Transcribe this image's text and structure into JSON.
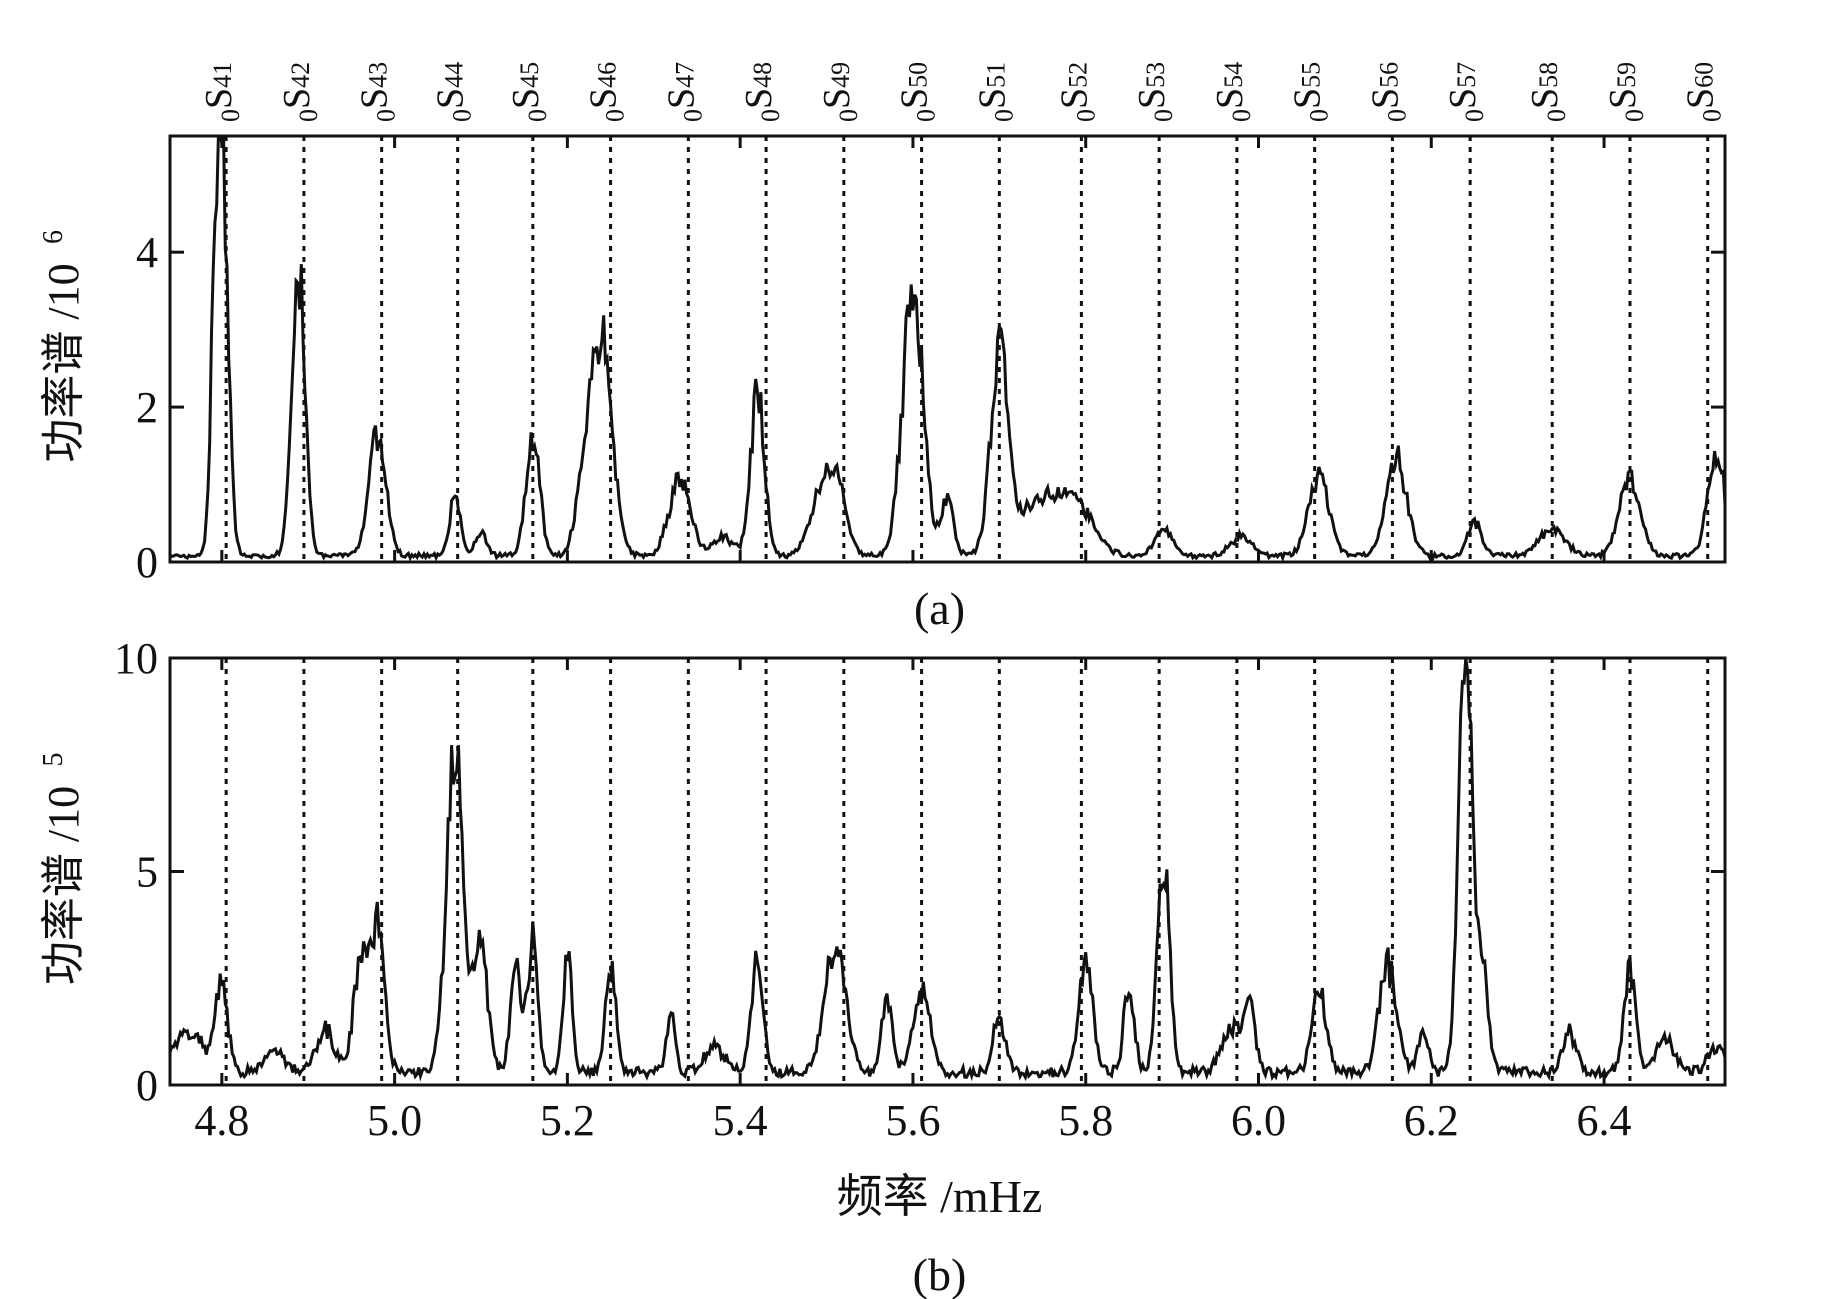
{
  "chart_data": [
    {
      "id": "a",
      "type": "line",
      "panel_label": "(a)",
      "ylabel": "功率谱 /10",
      "ylabel_exponent": "6",
      "xlim": [
        4.74,
        6.54
      ],
      "ylim": [
        0,
        5.5
      ],
      "yticks": [
        "0",
        "2",
        "4"
      ],
      "ytick_values": [
        0,
        2,
        4
      ],
      "grid": false,
      "mode_lines_style": "dotted",
      "peaks": [
        {
          "f": 4.8,
          "a": 5.0,
          "w": 0.007
        },
        {
          "f": 4.792,
          "a": 2.0,
          "w": 0.005
        },
        {
          "f": 4.89,
          "a": 3.5,
          "w": 0.007
        },
        {
          "f": 4.88,
          "a": 0.6,
          "w": 0.006
        },
        {
          "f": 4.98,
          "a": 1.5,
          "w": 0.01
        },
        {
          "f": 5.07,
          "a": 0.8,
          "w": 0.006
        },
        {
          "f": 5.1,
          "a": 0.28,
          "w": 0.007
        },
        {
          "f": 5.16,
          "a": 1.5,
          "w": 0.008
        },
        {
          "f": 5.24,
          "a": 2.7,
          "w": 0.012
        },
        {
          "f": 5.22,
          "a": 0.9,
          "w": 0.01
        },
        {
          "f": 5.33,
          "a": 1.0,
          "w": 0.012
        },
        {
          "f": 5.38,
          "a": 0.25,
          "w": 0.012
        },
        {
          "f": 5.42,
          "a": 2.1,
          "w": 0.008
        },
        {
          "f": 5.51,
          "a": 0.95,
          "w": 0.012
        },
        {
          "f": 5.49,
          "a": 0.6,
          "w": 0.012
        },
        {
          "f": 5.6,
          "a": 3.5,
          "w": 0.012
        },
        {
          "f": 5.64,
          "a": 0.7,
          "w": 0.007
        },
        {
          "f": 5.7,
          "a": 2.5,
          "w": 0.01
        },
        {
          "f": 5.75,
          "a": 0.7,
          "w": 0.03
        },
        {
          "f": 5.79,
          "a": 0.45,
          "w": 0.02
        },
        {
          "f": 5.89,
          "a": 0.35,
          "w": 0.01
        },
        {
          "f": 5.98,
          "a": 0.25,
          "w": 0.012
        },
        {
          "f": 6.07,
          "a": 1.0,
          "w": 0.012
        },
        {
          "f": 6.16,
          "a": 1.25,
          "w": 0.012
        },
        {
          "f": 6.25,
          "a": 0.45,
          "w": 0.008
        },
        {
          "f": 6.34,
          "a": 0.35,
          "w": 0.015
        },
        {
          "f": 6.43,
          "a": 1.0,
          "w": 0.012
        },
        {
          "f": 6.53,
          "a": 1.3,
          "w": 0.01
        }
      ],
      "baseline": 0.08
    },
    {
      "id": "b",
      "type": "line",
      "panel_label": "(b)",
      "ylabel": "功率谱 /10",
      "ylabel_exponent": "5",
      "xlabel": "频率 /mHz",
      "xlim": [
        4.74,
        6.54
      ],
      "ylim": [
        0,
        10
      ],
      "xticks": [
        "4.8",
        "5.0",
        "5.2",
        "5.4",
        "5.6",
        "5.8",
        "6.0",
        "6.2",
        "6.4"
      ],
      "xtick_values": [
        4.8,
        5.0,
        5.2,
        5.4,
        5.6,
        5.8,
        6.0,
        6.2,
        6.4
      ],
      "yticks": [
        "0",
        "5",
        "10"
      ],
      "ytick_values": [
        0,
        5,
        10
      ],
      "grid": false,
      "mode_lines_style": "dotted",
      "peaks": [
        {
          "f": 4.76,
          "a": 0.9,
          "w": 0.02
        },
        {
          "f": 4.8,
          "a": 2.0,
          "w": 0.007
        },
        {
          "f": 4.86,
          "a": 0.5,
          "w": 0.012
        },
        {
          "f": 4.92,
          "a": 1.0,
          "w": 0.01
        },
        {
          "f": 4.96,
          "a": 2.5,
          "w": 0.008
        },
        {
          "f": 4.98,
          "a": 3.6,
          "w": 0.008
        },
        {
          "f": 5.07,
          "a": 7.3,
          "w": 0.01
        },
        {
          "f": 5.1,
          "a": 3.0,
          "w": 0.008
        },
        {
          "f": 5.14,
          "a": 2.5,
          "w": 0.006
        },
        {
          "f": 5.16,
          "a": 3.0,
          "w": 0.006
        },
        {
          "f": 5.2,
          "a": 2.8,
          "w": 0.005
        },
        {
          "f": 5.25,
          "a": 2.4,
          "w": 0.006
        },
        {
          "f": 5.32,
          "a": 1.5,
          "w": 0.005
        },
        {
          "f": 5.37,
          "a": 0.6,
          "w": 0.012
        },
        {
          "f": 5.42,
          "a": 2.5,
          "w": 0.007
        },
        {
          "f": 5.51,
          "a": 2.9,
          "w": 0.012
        },
        {
          "f": 5.57,
          "a": 1.8,
          "w": 0.006
        },
        {
          "f": 5.61,
          "a": 1.9,
          "w": 0.01
        },
        {
          "f": 5.7,
          "a": 1.3,
          "w": 0.007
        },
        {
          "f": 5.8,
          "a": 2.6,
          "w": 0.008
        },
        {
          "f": 5.85,
          "a": 2.0,
          "w": 0.006
        },
        {
          "f": 5.89,
          "a": 5.0,
          "w": 0.007
        },
        {
          "f": 5.97,
          "a": 1.0,
          "w": 0.012
        },
        {
          "f": 5.99,
          "a": 1.5,
          "w": 0.006
        },
        {
          "f": 6.07,
          "a": 1.9,
          "w": 0.008
        },
        {
          "f": 6.15,
          "a": 2.5,
          "w": 0.01
        },
        {
          "f": 6.19,
          "a": 0.9,
          "w": 0.006
        },
        {
          "f": 6.24,
          "a": 10.0,
          "w": 0.008
        },
        {
          "f": 6.26,
          "a": 2.5,
          "w": 0.006
        },
        {
          "f": 6.36,
          "a": 0.9,
          "w": 0.008
        },
        {
          "f": 6.43,
          "a": 2.3,
          "w": 0.007
        },
        {
          "f": 6.47,
          "a": 0.8,
          "w": 0.01
        },
        {
          "f": 6.53,
          "a": 0.6,
          "w": 0.01
        }
      ],
      "baseline": 0.3
    }
  ],
  "mode_lines": [
    {
      "pre": "0",
      "letter": "S",
      "sub": "41",
      "freq": 4.805
    },
    {
      "pre": "0",
      "letter": "S",
      "sub": "42",
      "freq": 4.895
    },
    {
      "pre": "0",
      "letter": "S",
      "sub": "43",
      "freq": 4.985
    },
    {
      "pre": "0",
      "letter": "S",
      "sub": "44",
      "freq": 5.073
    },
    {
      "pre": "0",
      "letter": "S",
      "sub": "45",
      "freq": 5.16
    },
    {
      "pre": "0",
      "letter": "S",
      "sub": "46",
      "freq": 5.25
    },
    {
      "pre": "0",
      "letter": "S",
      "sub": "47",
      "freq": 5.34
    },
    {
      "pre": "0",
      "letter": "S",
      "sub": "48",
      "freq": 5.43
    },
    {
      "pre": "0",
      "letter": "S",
      "sub": "49",
      "freq": 5.52
    },
    {
      "pre": "0",
      "letter": "S",
      "sub": "50",
      "freq": 5.61
    },
    {
      "pre": "0",
      "letter": "S",
      "sub": "51",
      "freq": 5.7
    },
    {
      "pre": "0",
      "letter": "S",
      "sub": "52",
      "freq": 5.795
    },
    {
      "pre": "0",
      "letter": "S",
      "sub": "53",
      "freq": 5.885
    },
    {
      "pre": "0",
      "letter": "S",
      "sub": "54",
      "freq": 5.975
    },
    {
      "pre": "0",
      "letter": "S",
      "sub": "55",
      "freq": 6.065
    },
    {
      "pre": "0",
      "letter": "S",
      "sub": "56",
      "freq": 6.155
    },
    {
      "pre": "0",
      "letter": "S",
      "sub": "57",
      "freq": 6.245
    },
    {
      "pre": "0",
      "letter": "S",
      "sub": "58",
      "freq": 6.34
    },
    {
      "pre": "0",
      "letter": "S",
      "sub": "59",
      "freq": 6.43
    },
    {
      "pre": "0",
      "letter": "S",
      "sub": "60",
      "freq": 6.52
    }
  ],
  "colors": {
    "line": "#111111",
    "axis": "#111111",
    "mode_line": "#111111",
    "background": "#ffffff"
  }
}
